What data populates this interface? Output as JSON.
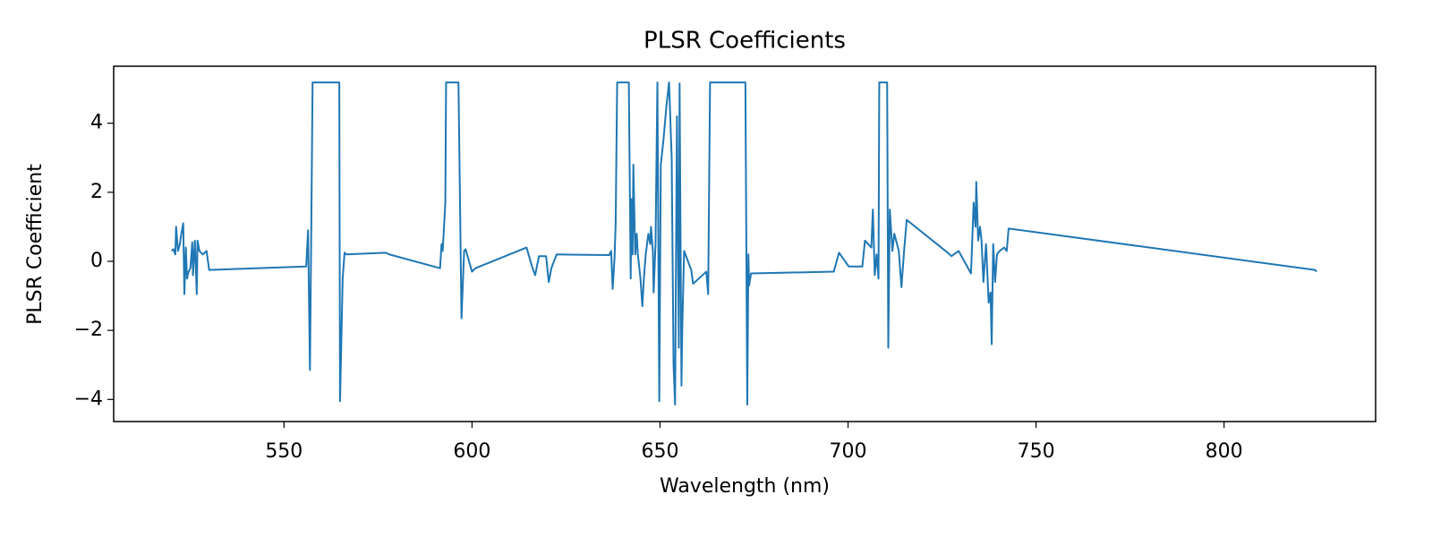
{
  "chart_data": {
    "type": "line",
    "title": "PLSR Coefficients",
    "x_label": "Wavelength (nm)",
    "y_label": "PLSR Coefficient",
    "color": "#1f77b4",
    "xlim": [
      504.7,
      840.3
    ],
    "ylim": [
      -4.64,
      5.65
    ],
    "xticks": [
      550,
      600,
      650,
      700,
      750,
      800
    ],
    "yticks": [
      {
        "value": -4,
        "label": "−4"
      },
      {
        "value": -2,
        "label": "−2"
      },
      0,
      2,
      4
    ],
    "x": [
      520.1,
      520.6,
      521.1,
      521.3,
      521.8,
      522.3,
      522.7,
      523.2,
      523.5,
      523.9,
      524.2,
      524.6,
      525.1,
      525.6,
      525.8,
      526.3,
      526.8,
      527.0,
      527.5,
      528.4,
      529.4,
      530.1,
      555.9,
      556.4,
      556.9,
      557.3,
      557.6,
      564.7,
      564.9,
      565.6,
      566.1,
      566.6,
      577.0,
      578.0,
      591.5,
      591.9,
      592.2,
      592.9,
      593.1,
      596.4,
      597.2,
      597.9,
      598.3,
      600.0,
      600.9,
      614.5,
      616.1,
      616.8,
      617.8,
      619.7,
      620.4,
      621.1,
      622.5,
      636.5,
      637.0,
      637.4,
      637.9,
      638.2,
      638.6,
      641.7,
      642.2,
      642.4,
      642.7,
      642.9,
      643.4,
      643.8,
      644.1,
      644.8,
      645.3,
      645.7,
      646.2,
      646.9,
      647.4,
      647.6,
      648.1,
      648.3,
      648.8,
      649.3,
      649.8,
      650.2,
      650.9,
      651.7,
      652.4,
      653.1,
      653.6,
      654.0,
      654.5,
      655.0,
      655.2,
      655.7,
      655.9,
      656.4,
      658.3,
      658.8,
      662.3,
      662.8,
      663.3,
      672.7,
      673.2,
      673.5,
      673.7,
      674.2,
      696.2,
      697.6,
      700.2,
      703.8,
      704.5,
      706.2,
      706.6,
      707.1,
      707.6,
      708.1,
      708.3,
      710.4,
      710.7,
      711.1,
      711.8,
      712.3,
      713.5,
      714.2,
      714.9,
      715.6,
      726.5,
      727.5,
      729.4,
      732.7,
      733.4,
      733.9,
      734.1,
      734.6,
      735.1,
      735.5,
      736.0,
      736.7,
      737.4,
      737.9,
      738.2,
      738.6,
      739.1,
      739.6,
      740.3,
      741.5,
      742.2,
      742.7,
      824.2,
      824.6
    ],
    "values": [
      0.3,
      0.35,
      0.2,
      1.0,
      0.3,
      0.5,
      0.8,
      1.1,
      -0.95,
      0.4,
      -0.5,
      -0.3,
      -0.2,
      0.55,
      -0.4,
      0.6,
      -0.95,
      0.6,
      0.3,
      0.2,
      0.3,
      -0.25,
      -0.15,
      0.9,
      -3.15,
      1.5,
      5.18,
      5.18,
      -4.05,
      -0.5,
      0.25,
      0.2,
      0.25,
      0.2,
      -0.2,
      0.5,
      0.3,
      1.7,
      5.18,
      5.18,
      -1.65,
      0.3,
      0.35,
      -0.3,
      -0.2,
      0.4,
      -0.2,
      -0.4,
      0.15,
      0.15,
      -0.6,
      -0.2,
      0.2,
      0.18,
      0.3,
      -0.8,
      0.1,
      1.1,
      5.18,
      5.18,
      -0.5,
      1.8,
      0.2,
      2.8,
      0.2,
      0.8,
      0.2,
      -0.5,
      -1.3,
      -0.5,
      0.2,
      0.8,
      0.5,
      1.0,
      0.3,
      -0.9,
      0.5,
      5.18,
      -4.05,
      2.8,
      3.5,
      4.5,
      5.18,
      3.0,
      -3.0,
      -4.15,
      4.2,
      -2.5,
      5.15,
      -3.6,
      -2.0,
      0.3,
      -0.25,
      -0.65,
      -0.3,
      -0.95,
      5.18,
      5.18,
      -4.15,
      0.2,
      -0.7,
      -0.35,
      -0.3,
      0.25,
      -0.15,
      -0.15,
      0.6,
      0.4,
      1.5,
      -0.4,
      0.2,
      -0.5,
      5.18,
      5.18,
      -2.5,
      1.5,
      0.3,
      0.8,
      0.3,
      -0.75,
      0.3,
      1.2,
      0.25,
      0.15,
      0.3,
      -0.35,
      1.7,
      1.0,
      2.3,
      0.6,
      1.0,
      0.6,
      -0.6,
      0.5,
      -1.2,
      -0.9,
      -2.4,
      0.5,
      -0.6,
      0.2,
      0.3,
      0.4,
      0.3,
      0.95,
      -0.25,
      -0.3
    ]
  }
}
